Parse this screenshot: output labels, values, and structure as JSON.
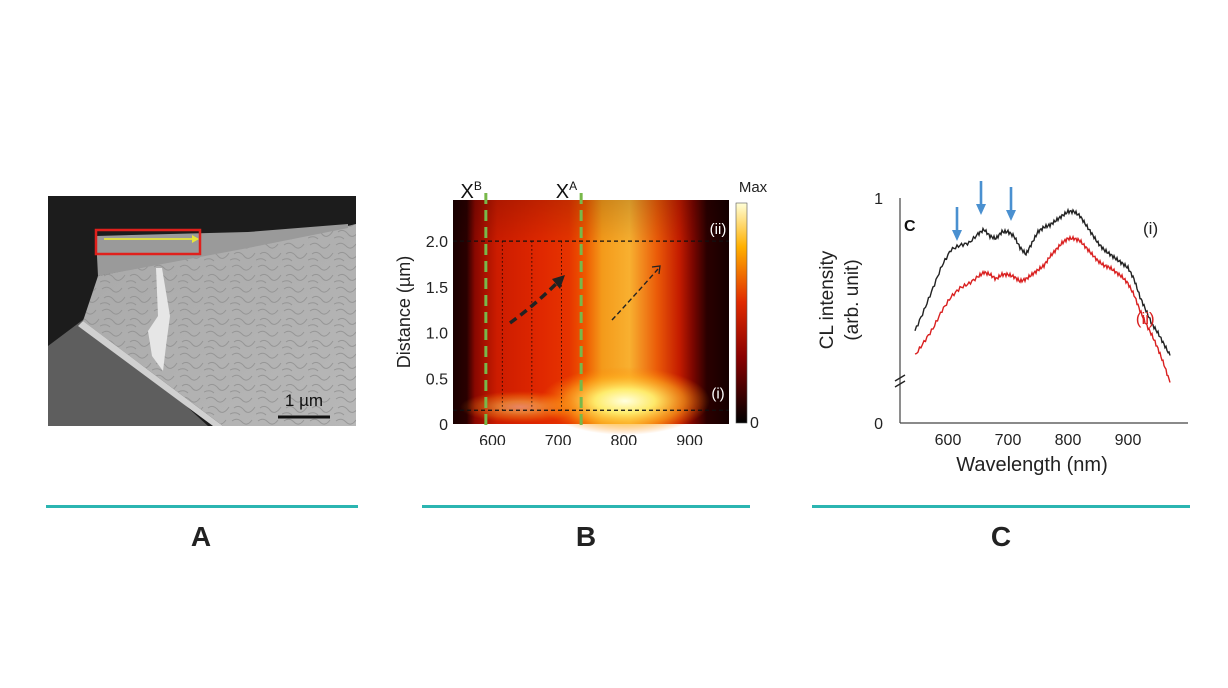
{
  "panels": {
    "a": {
      "label": "A",
      "scale_bar_text": "1 µm"
    },
    "b": {
      "label": "B"
    },
    "c": {
      "label": "C"
    }
  },
  "chart_data": [
    {
      "type": "heatmap",
      "panel": "B",
      "xlabel": "",
      "ylabel": "Distance (µm)",
      "xlim": [
        540,
        960
      ],
      "ylim": [
        0,
        2.45
      ],
      "x_ticks": [
        "600",
        "700",
        "800",
        "900"
      ],
      "y_ticks": [
        "0",
        "0.5",
        "1.0",
        "1.5",
        "2.0"
      ],
      "x_tick_values": [
        600,
        700,
        800,
        900
      ],
      "y_tick_values": [
        0,
        0.5,
        1.0,
        1.5,
        2.0
      ],
      "colorbar": {
        "max_label": "Max",
        "min_label": "0"
      },
      "markers": [
        {
          "label": "X",
          "sup": "B",
          "wavelength": 590
        },
        {
          "label": "X",
          "sup": "A",
          "wavelength": 735
        }
      ],
      "line_labels": [
        {
          "text": "(ii)",
          "distance": 2.0
        },
        {
          "text": "(i)",
          "distance": 0.15
        }
      ]
    },
    {
      "type": "line",
      "panel": "C",
      "title": "C",
      "xlabel": "Wavelength (nm)",
      "ylabel_line1": "CL intensity",
      "ylabel_line2": "(arb. unit)",
      "xlim": [
        520,
        1000
      ],
      "ylim": [
        0,
        1
      ],
      "x_ticks": [
        "600",
        "700",
        "800",
        "900"
      ],
      "x_tick_values": [
        600,
        700,
        800,
        900
      ],
      "y_ticks": [
        "0",
        "1"
      ],
      "y_tick_values": [
        0,
        1
      ],
      "arrows_nm": [
        615,
        655,
        705
      ],
      "series": [
        {
          "name": "(i)",
          "color": "#222222",
          "x": [
            545,
            560,
            575,
            590,
            605,
            620,
            635,
            650,
            660,
            670,
            680,
            690,
            700,
            710,
            720,
            730,
            740,
            750,
            760,
            770,
            780,
            790,
            800,
            810,
            820,
            830,
            840,
            850,
            860,
            870,
            880,
            890,
            900,
            910,
            920,
            930,
            940,
            950,
            960,
            970
          ],
          "y": [
            0.41,
            0.5,
            0.6,
            0.7,
            0.77,
            0.79,
            0.8,
            0.84,
            0.86,
            0.83,
            0.82,
            0.85,
            0.85,
            0.83,
            0.78,
            0.75,
            0.8,
            0.85,
            0.87,
            0.88,
            0.9,
            0.92,
            0.94,
            0.94,
            0.92,
            0.88,
            0.84,
            0.8,
            0.77,
            0.75,
            0.73,
            0.71,
            0.69,
            0.64,
            0.56,
            0.5,
            0.44,
            0.4,
            0.35,
            0.3
          ]
        },
        {
          "name": "(ii)",
          "color": "#d92020",
          "x": [
            545,
            560,
            575,
            590,
            605,
            620,
            635,
            650,
            660,
            670,
            680,
            690,
            700,
            710,
            720,
            730,
            740,
            750,
            760,
            770,
            780,
            790,
            800,
            810,
            820,
            830,
            840,
            850,
            860,
            870,
            880,
            890,
            900,
            910,
            920,
            930,
            940,
            950,
            960,
            970
          ],
          "y": [
            0.3,
            0.36,
            0.42,
            0.5,
            0.56,
            0.6,
            0.62,
            0.65,
            0.67,
            0.66,
            0.64,
            0.66,
            0.66,
            0.65,
            0.63,
            0.64,
            0.66,
            0.68,
            0.7,
            0.74,
            0.77,
            0.8,
            0.82,
            0.82,
            0.81,
            0.78,
            0.75,
            0.72,
            0.7,
            0.69,
            0.67,
            0.65,
            0.62,
            0.57,
            0.5,
            0.44,
            0.39,
            0.33,
            0.26,
            0.18
          ]
        }
      ]
    }
  ]
}
